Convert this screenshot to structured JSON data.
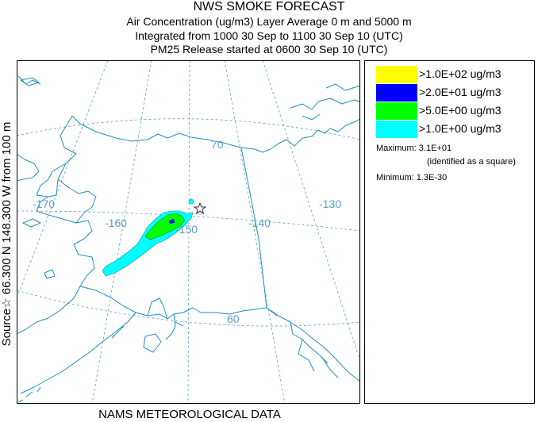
{
  "title": {
    "line1": "NWS SMOKE FORECAST",
    "line2": "Air Concentration (ug/m3) Layer Average    0 m and  5000 m",
    "line3": "Integrated from 1000 30 Sep to 1100 30 Sep 10 (UTC)",
    "line4": "PM25 Release started at 0600 30 Sep 10 (UTC)"
  },
  "source_label": "Source☆ 66.300  N 148.300  W     from   100 m",
  "footer": "NAMS METEOROLOGICAL DATA",
  "map": {
    "graticule_labels": {
      "lon_170": "-170",
      "lon_160": "-160",
      "lon_150": "-150",
      "lon_140": "-140",
      "lon_130": "-130",
      "lat_70": "70",
      "lat_60": "60"
    },
    "source_marker": {
      "lat": 66.3,
      "lon": -148.3
    }
  },
  "colors": {
    "graticule": "#5aa0c8",
    "coast": "#1f8fc0",
    "cyan": "#00ffff",
    "green": "#00ff00",
    "blue": "#0000ff",
    "yellow": "#ffff00"
  },
  "legend": {
    "items": [
      {
        "label": ">1.0E+02 ug/m3",
        "color": "#ffff00"
      },
      {
        "label": ">2.0E+01 ug/m3",
        "color": "#0000ff"
      },
      {
        "label": ">5.0E+00 ug/m3",
        "color": "#00ff00"
      },
      {
        "label": ">1.0E+00 ug/m3",
        "color": "#00ffff"
      }
    ],
    "maximum": "Maximum: 3.1E+01",
    "maximum_note": "(identified as a square)",
    "minimum": "Minimum: 1.3E-30"
  }
}
